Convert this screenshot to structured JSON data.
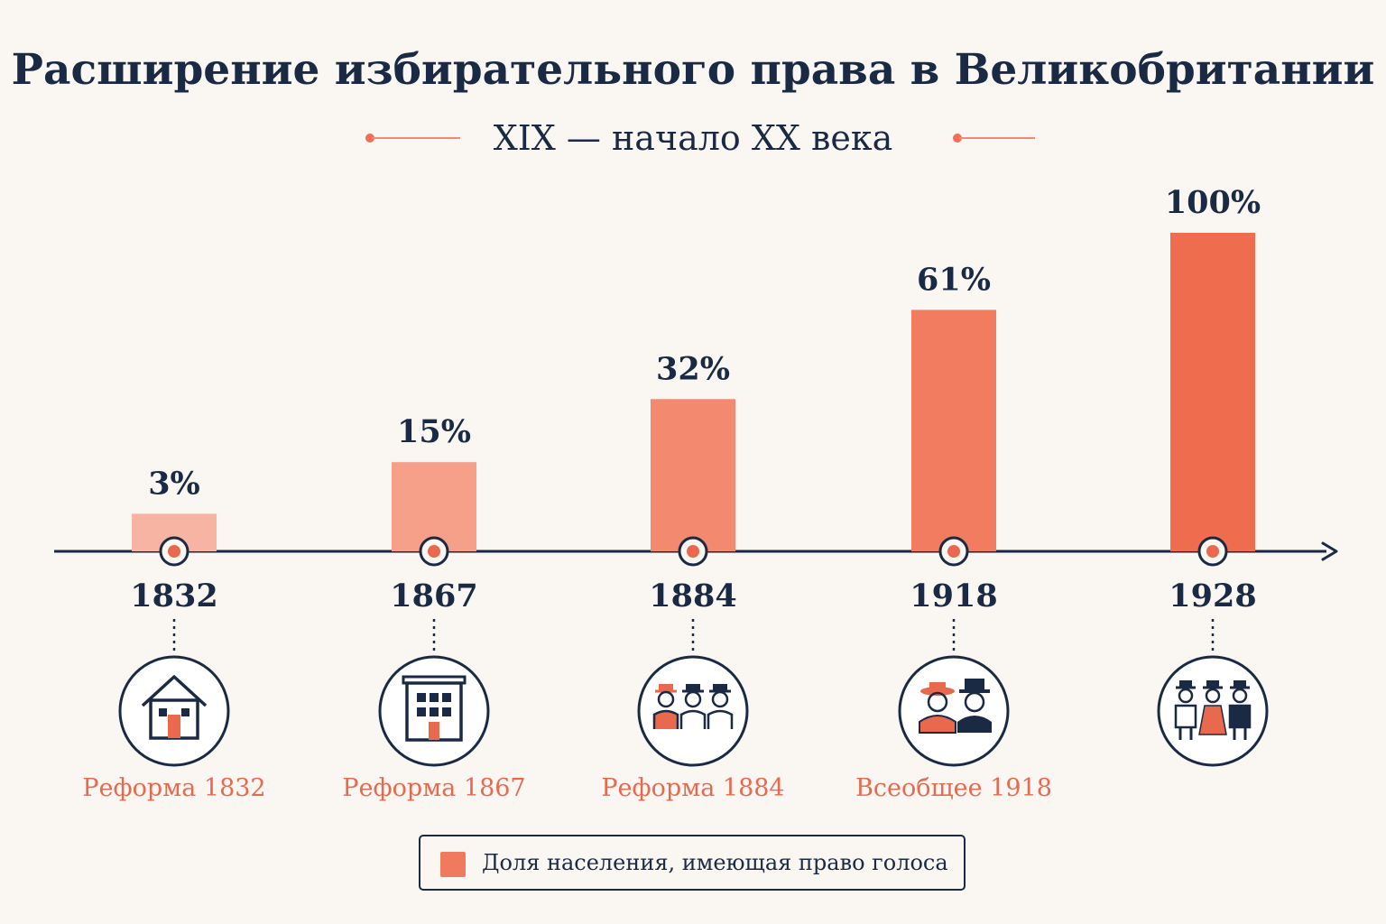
{
  "title": "Расширение избирательного права в Великобритании",
  "subtitle": "XIX — начало XX века",
  "legend": {
    "label": "Доля населения, имеющая право голоса",
    "color": "#f07a5e"
  },
  "colors": {
    "axis": "#1b2a44",
    "accent": "#e9694f",
    "bars": [
      "#f8b4a2",
      "#f6a08a",
      "#f38a70",
      "#f17c60",
      "#ef6c4f"
    ]
  },
  "events": [
    {
      "year": "1832",
      "label": "Реформа 1832",
      "value_label": "3%",
      "icon": "house-icon"
    },
    {
      "year": "1867",
      "label": "Реформа 1867",
      "value_label": "15%",
      "icon": "building-icon"
    },
    {
      "year": "1884",
      "label": "Реформа 1884",
      "value_label": "32%",
      "icon": "three-men-icon"
    },
    {
      "year": "1918",
      "label": "Всеобщее 1918",
      "value_label": "61%",
      "icon": "man-woman-icon"
    },
    {
      "year": "1928",
      "label": "",
      "value_label": "100%",
      "icon": "family-group-icon"
    }
  ],
  "chart_data": {
    "type": "bar",
    "title": "Расширение избирательного права в Великобритании",
    "subtitle": "XIX — начало XX века",
    "categories": [
      "1832",
      "1867",
      "1884",
      "1918",
      "1928"
    ],
    "values": [
      3,
      15,
      32,
      61,
      100
    ],
    "unit": "%",
    "ylim": [
      0,
      100
    ],
    "grid": false,
    "legend": "bottom-center",
    "series": [
      {
        "name": "Доля населения, имеющая право голоса",
        "values": [
          3,
          15,
          32,
          61,
          100
        ]
      }
    ]
  }
}
